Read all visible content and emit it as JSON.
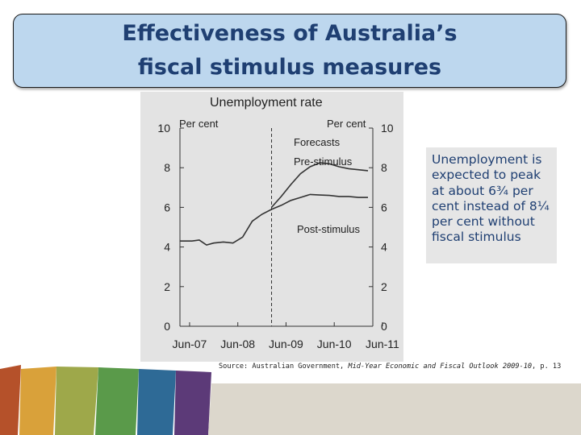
{
  "slide": {
    "title": "Effectiveness of Australia’s fiscal stimulus measures",
    "callout": "Unemployment is expected to peak at about 6¾ per cent instead of 8¼ per cent without fiscal stimulus",
    "source_prefix": "Source: Australian Government, ",
    "source_italic": "Mid-Year Economic and Fiscal Outlook 2009-10",
    "source_suffix": ", p. 13"
  },
  "colors": {
    "title_bg": "#bdd7ee",
    "title_text": "#1f3f72",
    "band": [
      "#b5512a",
      "#d9a13a",
      "#9ea84a",
      "#5a9a4a",
      "#2e6a96",
      "#5c3a78",
      "#dcd7cc"
    ]
  },
  "chart_data": {
    "type": "line",
    "title": "Unemployment rate",
    "ylabel_left": "Per cent",
    "ylabel_right": "Per cent",
    "ylim": [
      0,
      10
    ],
    "yticks": [
      0,
      2,
      4,
      6,
      8,
      10
    ],
    "xticks": [
      "Jun-07",
      "Jun-08",
      "Jun-09",
      "Jun-10",
      "Jun-11"
    ],
    "xlim": [
      2007.3,
      2011.3
    ],
    "grid": false,
    "forecast_start": 2009.2,
    "annotations": {
      "forecasts": "Forecasts",
      "pre": "Pre-stimulus",
      "post": "Post-stimulus"
    },
    "series": [
      {
        "name": "Pre-stimulus",
        "points": [
          [
            2009.2,
            6.0
          ],
          [
            2009.4,
            6.55
          ],
          [
            2009.6,
            7.15
          ],
          [
            2009.8,
            7.7
          ],
          [
            2010.0,
            8.05
          ],
          [
            2010.2,
            8.25
          ],
          [
            2010.4,
            8.2
          ],
          [
            2010.6,
            8.05
          ],
          [
            2010.8,
            7.95
          ],
          [
            2011.0,
            7.9
          ],
          [
            2011.2,
            7.85
          ]
        ]
      },
      {
        "name": "Post-stimulus",
        "points": [
          [
            2007.3,
            4.3
          ],
          [
            2007.4,
            4.3
          ],
          [
            2007.55,
            4.3
          ],
          [
            2007.7,
            4.35
          ],
          [
            2007.85,
            4.1
          ],
          [
            2008.0,
            4.2
          ],
          [
            2008.2,
            4.25
          ],
          [
            2008.4,
            4.2
          ],
          [
            2008.6,
            4.5
          ],
          [
            2008.8,
            5.3
          ],
          [
            2009.0,
            5.65
          ],
          [
            2009.2,
            5.9
          ],
          [
            2009.4,
            6.1
          ],
          [
            2009.6,
            6.35
          ],
          [
            2009.8,
            6.5
          ],
          [
            2010.0,
            6.65
          ],
          [
            2010.2,
            6.62
          ],
          [
            2010.4,
            6.6
          ],
          [
            2010.6,
            6.55
          ],
          [
            2010.8,
            6.55
          ],
          [
            2011.0,
            6.5
          ],
          [
            2011.2,
            6.5
          ]
        ]
      }
    ]
  }
}
